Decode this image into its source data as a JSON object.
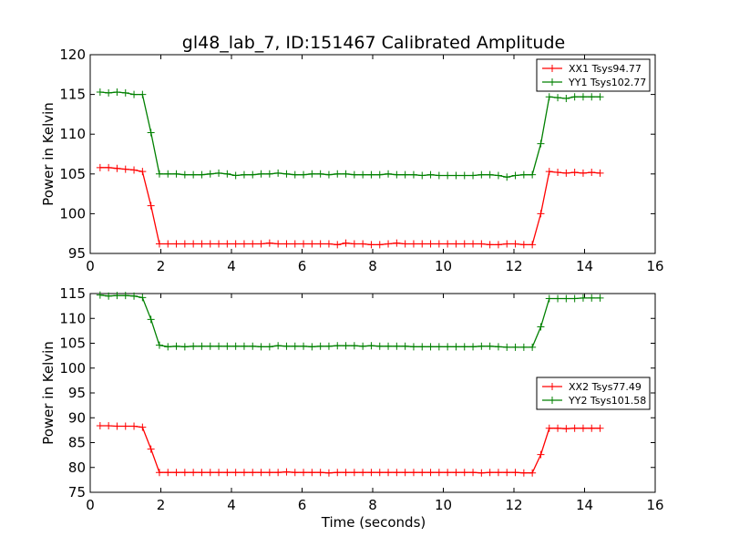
{
  "chart_data": [
    {
      "type": "line",
      "title": "gl48_lab_7, ID:151467 Calibrated Amplitude",
      "xlabel": "",
      "ylabel": "Power in Kelvin",
      "xlim": [
        0,
        16
      ],
      "ylim": [
        95,
        120
      ],
      "xticks": [
        0,
        2,
        4,
        6,
        8,
        10,
        12,
        14,
        16
      ],
      "yticks": [
        95,
        100,
        105,
        110,
        115,
        120
      ],
      "legend_position": "top-right",
      "x": [
        0.28,
        0.52,
        0.76,
        1.0,
        1.24,
        1.48,
        1.72,
        1.96,
        2.2,
        2.44,
        2.68,
        2.92,
        3.16,
        3.4,
        3.64,
        3.88,
        4.12,
        4.36,
        4.6,
        4.84,
        5.08,
        5.32,
        5.56,
        5.8,
        6.04,
        6.28,
        6.52,
        6.76,
        7.0,
        7.24,
        7.48,
        7.72,
        7.96,
        8.2,
        8.44,
        8.68,
        8.92,
        9.16,
        9.4,
        9.64,
        9.88,
        10.12,
        10.36,
        10.6,
        10.84,
        11.08,
        11.32,
        11.56,
        11.8,
        12.04,
        12.28,
        12.52,
        12.76,
        13.0,
        13.24,
        13.48,
        13.72,
        13.96,
        14.2,
        14.44
      ],
      "series": [
        {
          "name": "XX1 Tsys94.77",
          "color": "#ff0000",
          "values": [
            105.8,
            105.8,
            105.7,
            105.6,
            105.5,
            105.3,
            101.0,
            96.2,
            96.2,
            96.2,
            96.2,
            96.2,
            96.2,
            96.2,
            96.2,
            96.2,
            96.2,
            96.2,
            96.2,
            96.2,
            96.3,
            96.2,
            96.2,
            96.2,
            96.2,
            96.2,
            96.2,
            96.2,
            96.1,
            96.3,
            96.2,
            96.2,
            96.1,
            96.1,
            96.2,
            96.3,
            96.2,
            96.2,
            96.2,
            96.2,
            96.2,
            96.2,
            96.2,
            96.2,
            96.2,
            96.2,
            96.1,
            96.1,
            96.2,
            96.2,
            96.1,
            96.1,
            100.0,
            105.3,
            105.2,
            105.1,
            105.2,
            105.1,
            105.2,
            105.1
          ]
        },
        {
          "name": "YY1 Tsys102.77",
          "color": "#008000",
          "values": [
            115.3,
            115.2,
            115.3,
            115.2,
            115.0,
            115.0,
            110.2,
            105.0,
            105.0,
            105.0,
            104.9,
            104.9,
            104.9,
            105.0,
            105.1,
            105.0,
            104.8,
            104.9,
            104.9,
            105.0,
            105.0,
            105.1,
            105.0,
            104.9,
            104.9,
            105.0,
            105.0,
            104.9,
            105.0,
            105.0,
            104.9,
            104.9,
            104.9,
            104.9,
            105.0,
            104.9,
            104.9,
            104.9,
            104.8,
            104.9,
            104.8,
            104.8,
            104.8,
            104.8,
            104.8,
            104.9,
            104.9,
            104.8,
            104.6,
            104.8,
            104.9,
            104.9,
            108.8,
            114.7,
            114.6,
            114.5,
            114.7,
            114.7,
            114.7,
            114.7
          ]
        }
      ]
    },
    {
      "type": "line",
      "title": "",
      "xlabel": "Time (seconds)",
      "ylabel": "Power in Kelvin",
      "xlim": [
        0,
        16
      ],
      "ylim": [
        75,
        115
      ],
      "xticks": [
        0,
        2,
        4,
        6,
        8,
        10,
        12,
        14,
        16
      ],
      "yticks": [
        75,
        80,
        85,
        90,
        95,
        100,
        105,
        110,
        115
      ],
      "legend_position": "center-right",
      "x": [
        0.28,
        0.52,
        0.76,
        1.0,
        1.24,
        1.48,
        1.72,
        1.96,
        2.2,
        2.44,
        2.68,
        2.92,
        3.16,
        3.4,
        3.64,
        3.88,
        4.12,
        4.36,
        4.6,
        4.84,
        5.08,
        5.32,
        5.56,
        5.8,
        6.04,
        6.28,
        6.52,
        6.76,
        7.0,
        7.24,
        7.48,
        7.72,
        7.96,
        8.2,
        8.44,
        8.68,
        8.92,
        9.16,
        9.4,
        9.64,
        9.88,
        10.12,
        10.36,
        10.6,
        10.84,
        11.08,
        11.32,
        11.56,
        11.8,
        12.04,
        12.28,
        12.52,
        12.76,
        13.0,
        13.24,
        13.48,
        13.72,
        13.96,
        14.2,
        14.44
      ],
      "series": [
        {
          "name": "XX2 Tsys77.49",
          "color": "#ff0000",
          "values": [
            88.4,
            88.4,
            88.3,
            88.3,
            88.3,
            88.1,
            83.7,
            79.0,
            79.0,
            79.0,
            79.0,
            79.0,
            79.0,
            79.0,
            79.0,
            79.0,
            79.0,
            79.0,
            79.0,
            79.0,
            79.0,
            79.0,
            79.1,
            79.0,
            79.0,
            79.0,
            79.0,
            78.9,
            79.0,
            79.0,
            79.0,
            79.0,
            79.0,
            79.0,
            79.0,
            79.0,
            79.0,
            79.0,
            79.0,
            79.0,
            79.0,
            79.0,
            79.0,
            79.0,
            79.0,
            78.9,
            79.0,
            79.0,
            79.0,
            79.0,
            78.9,
            78.9,
            82.6,
            87.9,
            87.9,
            87.8,
            87.9,
            87.9,
            87.9,
            87.9
          ]
        },
        {
          "name": "YY2 Tsys101.58",
          "color": "#008000",
          "values": [
            114.7,
            114.5,
            114.6,
            114.6,
            114.5,
            114.2,
            109.8,
            104.6,
            104.3,
            104.4,
            104.3,
            104.4,
            104.4,
            104.4,
            104.4,
            104.4,
            104.4,
            104.4,
            104.4,
            104.3,
            104.3,
            104.5,
            104.4,
            104.4,
            104.4,
            104.3,
            104.4,
            104.4,
            104.5,
            104.5,
            104.5,
            104.4,
            104.5,
            104.4,
            104.4,
            104.4,
            104.4,
            104.3,
            104.3,
            104.3,
            104.3,
            104.3,
            104.3,
            104.3,
            104.3,
            104.4,
            104.4,
            104.3,
            104.2,
            104.2,
            104.2,
            104.2,
            108.3,
            114.0,
            114.0,
            114.0,
            114.0,
            114.1,
            114.1,
            114.1
          ]
        }
      ]
    }
  ]
}
